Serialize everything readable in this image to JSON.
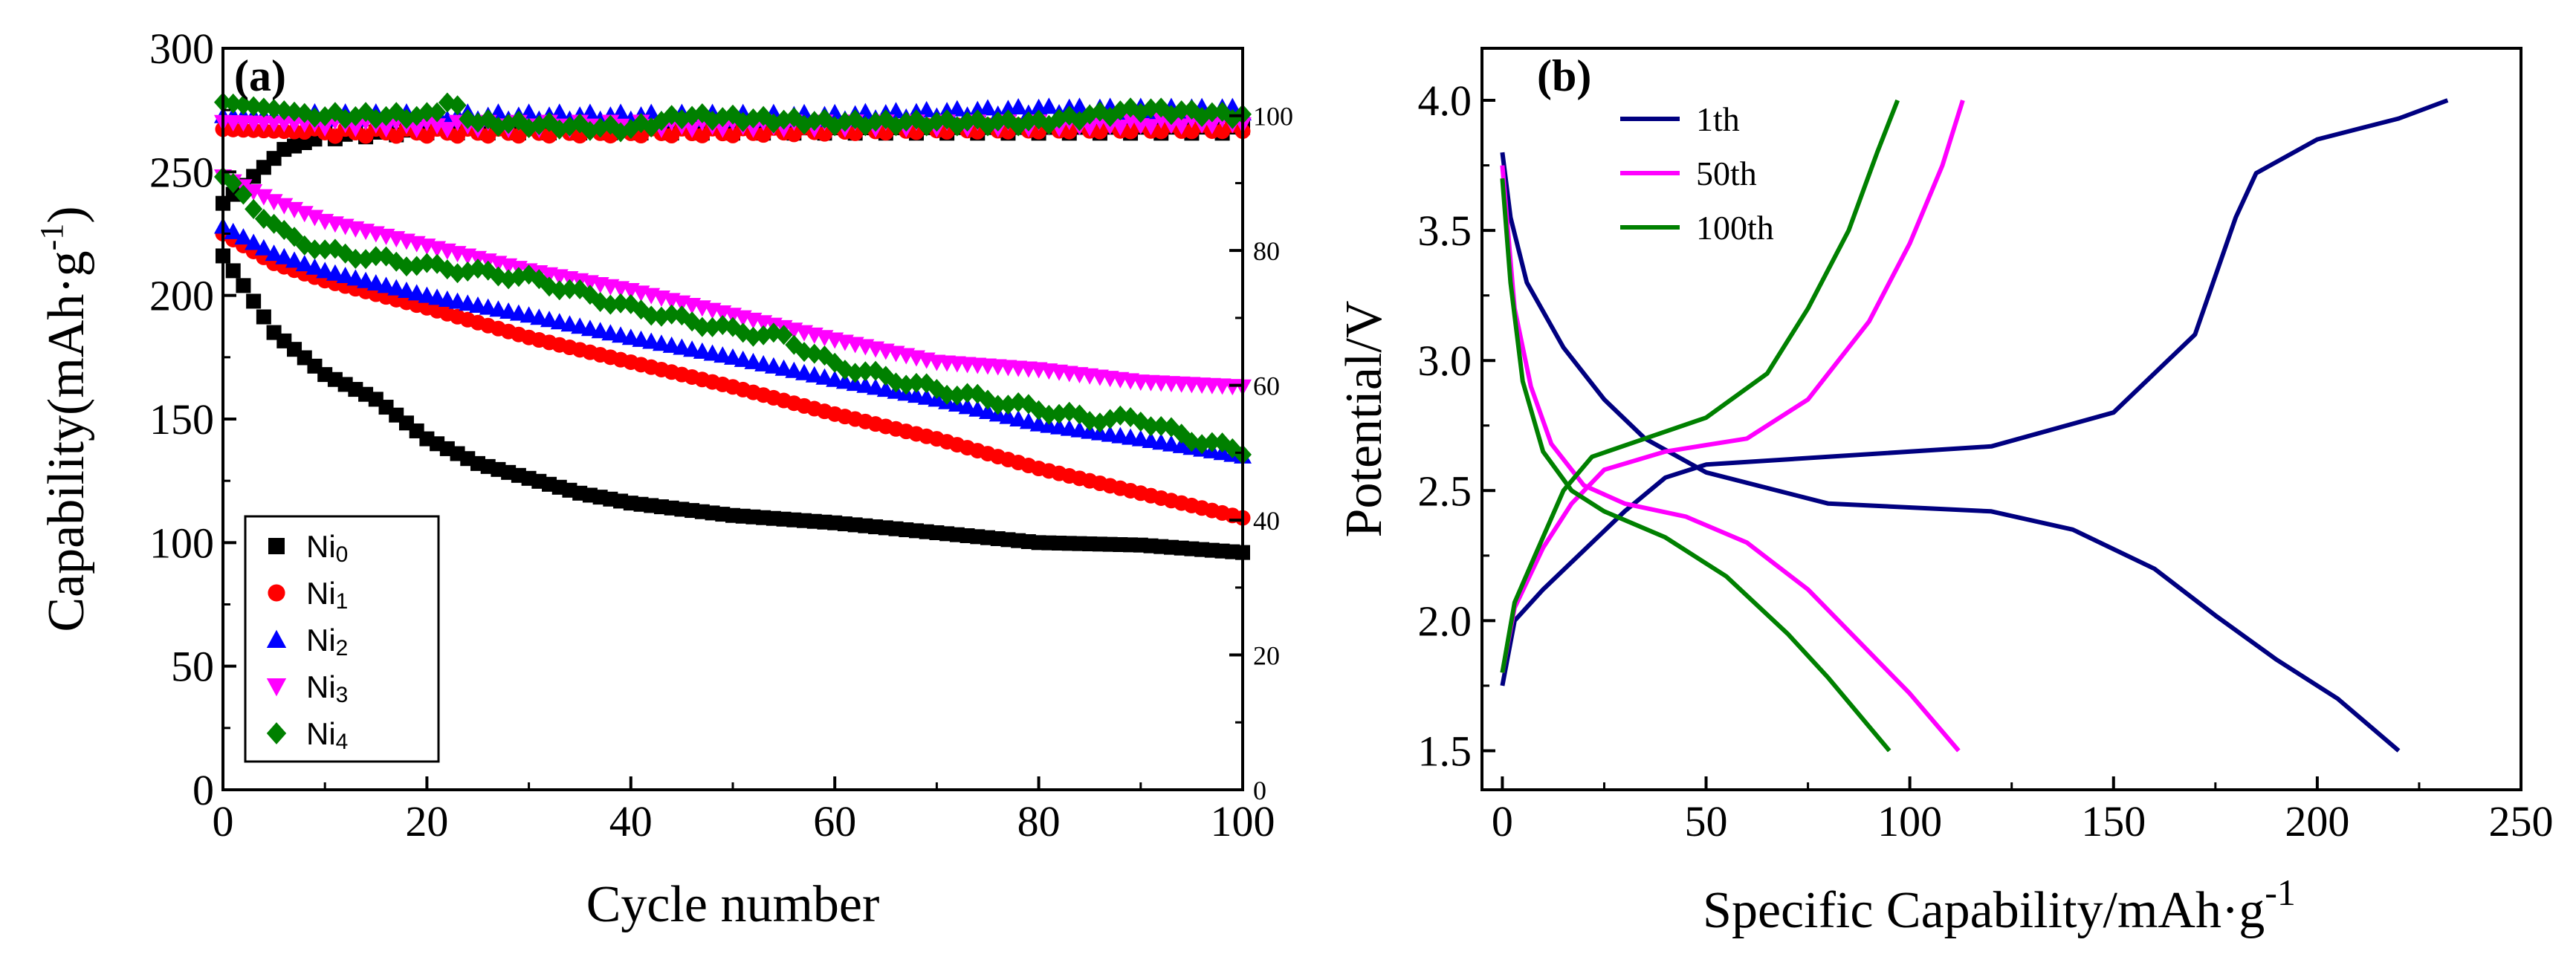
{
  "chart_data": [
    {
      "panel": "(a)",
      "type": "scatter",
      "xlabel": "Cycle number",
      "ylabel": "Capability(mAh·g",
      "ylabel_sup": "-1",
      "ylabel_end": ")",
      "xlim": [
        0,
        100
      ],
      "ylim": [
        0,
        300
      ],
      "y2lim": [
        0,
        110
      ],
      "xticks": [
        "0",
        "20",
        "40",
        "60",
        "80",
        "100"
      ],
      "yticks": [
        "0",
        "50",
        "100",
        "150",
        "200",
        "250",
        "300"
      ],
      "y2ticks": [
        "0",
        "20",
        "40",
        "60",
        "80",
        "100"
      ],
      "legend_position": "bottom-left",
      "series": [
        {
          "name": "Ni",
          "sub": "0",
          "color": "#000000",
          "marker": "square",
          "capacity": [
            [
              0,
              216
            ],
            [
              2,
              204
            ],
            [
              5,
              185
            ],
            [
              10,
              168
            ],
            [
              15,
              158
            ],
            [
              20,
              142
            ],
            [
              25,
              132
            ],
            [
              30,
              126
            ],
            [
              35,
              120
            ],
            [
              40,
              116
            ],
            [
              50,
              111
            ],
            [
              60,
              108
            ],
            [
              70,
              104
            ],
            [
              80,
              100
            ],
            [
              90,
              99
            ],
            [
              100,
              96
            ]
          ],
          "efficiency": [
            [
              0,
              87
            ],
            [
              3,
              91
            ],
            [
              6,
              95
            ],
            [
              10,
              97
            ],
            [
              20,
              98
            ],
            [
              40,
              98
            ],
            [
              60,
              98
            ],
            [
              80,
              98
            ],
            [
              100,
              98
            ]
          ]
        },
        {
          "name": "Ni",
          "sub": "1",
          "color": "#ff0000",
          "marker": "circle",
          "capacity": [
            [
              0,
              225
            ],
            [
              5,
              213
            ],
            [
              10,
              206
            ],
            [
              20,
              195
            ],
            [
              30,
              183
            ],
            [
              40,
              173
            ],
            [
              50,
              163
            ],
            [
              60,
              152
            ],
            [
              70,
              142
            ],
            [
              80,
              130
            ],
            [
              90,
              120
            ],
            [
              100,
              110
            ]
          ],
          "efficiency": [
            [
              0,
              98
            ],
            [
              10,
              97.5
            ],
            [
              30,
              97.5
            ],
            [
              50,
              97.5
            ],
            [
              70,
              98
            ],
            [
              100,
              98
            ]
          ]
        },
        {
          "name": "Ni",
          "sub": "2",
          "color": "#0000ff",
          "marker": "triangle-up",
          "capacity": [
            [
              0,
              228
            ],
            [
              5,
              217
            ],
            [
              10,
              210
            ],
            [
              20,
              200
            ],
            [
              30,
              192
            ],
            [
              40,
              183
            ],
            [
              50,
              175
            ],
            [
              60,
              166
            ],
            [
              70,
              158
            ],
            [
              80,
              148
            ],
            [
              90,
              142
            ],
            [
              100,
              135
            ]
          ],
          "efficiency": [
            [
              0,
              100
            ],
            [
              20,
              100
            ],
            [
              40,
              100
            ],
            [
              60,
              100
            ],
            [
              80,
              101
            ],
            [
              100,
              101
            ]
          ]
        },
        {
          "name": "Ni",
          "sub": "3",
          "color": "#ff00ff",
          "marker": "triangle-down",
          "capacity": [
            [
              0,
              248
            ],
            [
              5,
              238
            ],
            [
              10,
              230
            ],
            [
              20,
              220
            ],
            [
              30,
              210
            ],
            [
              40,
              202
            ],
            [
              50,
              192
            ],
            [
              60,
              182
            ],
            [
              70,
              173
            ],
            [
              80,
              170
            ],
            [
              90,
              165
            ],
            [
              100,
              163
            ]
          ],
          "efficiency": [
            [
              0,
              99
            ],
            [
              20,
              98.5
            ],
            [
              40,
              98.5
            ],
            [
              60,
              98.5
            ],
            [
              80,
              98.5
            ],
            [
              100,
              99
            ]
          ]
        },
        {
          "name": "Ni",
          "sub": "4",
          "color": "#008000",
          "marker": "diamond",
          "capacity": [
            [
              0,
              248
            ],
            [
              3,
              236
            ],
            [
              6,
              225
            ],
            [
              10,
              218
            ],
            [
              20,
              212
            ],
            [
              30,
              207
            ],
            [
              40,
              195
            ],
            [
              50,
              186
            ],
            [
              55,
              183
            ],
            [
              60,
              172
            ],
            [
              70,
              162
            ],
            [
              80,
              154
            ],
            [
              85,
              150
            ],
            [
              90,
              150
            ],
            [
              95,
              142
            ],
            [
              100,
              137
            ]
          ],
          "efficiency": [
            [
              0,
              102
            ],
            [
              5,
              101
            ],
            [
              10,
              100
            ],
            [
              20,
              100
            ],
            [
              22,
              102
            ],
            [
              25,
              99
            ],
            [
              40,
              98
            ],
            [
              45,
              100
            ],
            [
              60,
              99
            ],
            [
              80,
              99
            ],
            [
              90,
              101
            ],
            [
              100,
              100
            ]
          ]
        }
      ]
    },
    {
      "panel": "(b)",
      "type": "line",
      "xlabel": "Specific Capability/mAh·g",
      "xlabel_sup": "-1",
      "ylabel": "Potential/V",
      "xlim": [
        -5,
        250
      ],
      "ylim": [
        1.35,
        4.2
      ],
      "xticks": [
        "0",
        "50",
        "100",
        "150",
        "200",
        "250"
      ],
      "yticks": [
        "1.5",
        "2.0",
        "2.5",
        "3.0",
        "3.5",
        "4.0"
      ],
      "legend_position": "top-left",
      "series": [
        {
          "name": "1th",
          "color": "#000080",
          "charge": [
            [
              0,
              1.75
            ],
            [
              3,
              2.0
            ],
            [
              10,
              2.12
            ],
            [
              20,
              2.27
            ],
            [
              30,
              2.42
            ],
            [
              40,
              2.55
            ],
            [
              50,
              2.6
            ],
            [
              80,
              2.63
            ],
            [
              120,
              2.67
            ],
            [
              150,
              2.8
            ],
            [
              170,
              3.1
            ],
            [
              180,
              3.55
            ],
            [
              185,
              3.72
            ],
            [
              200,
              3.85
            ],
            [
              220,
              3.93
            ],
            [
              232,
              4.0
            ]
          ],
          "discharge": [
            [
              0,
              3.8
            ],
            [
              2,
              3.55
            ],
            [
              6,
              3.3
            ],
            [
              15,
              3.05
            ],
            [
              25,
              2.85
            ],
            [
              35,
              2.7
            ],
            [
              50,
              2.57
            ],
            [
              80,
              2.45
            ],
            [
              120,
              2.42
            ],
            [
              140,
              2.35
            ],
            [
              160,
              2.2
            ],
            [
              175,
              2.02
            ],
            [
              190,
              1.85
            ],
            [
              205,
              1.7
            ],
            [
              220,
              1.5
            ]
          ]
        },
        {
          "name": "50th",
          "color": "#ff00ff",
          "charge": [
            [
              0,
              1.8
            ],
            [
              3,
              2.05
            ],
            [
              10,
              2.28
            ],
            [
              17,
              2.45
            ],
            [
              25,
              2.58
            ],
            [
              40,
              2.65
            ],
            [
              60,
              2.7
            ],
            [
              75,
              2.85
            ],
            [
              90,
              3.15
            ],
            [
              100,
              3.45
            ],
            [
              108,
              3.75
            ],
            [
              113,
              4.0
            ]
          ],
          "discharge": [
            [
              0,
              3.75
            ],
            [
              3,
              3.2
            ],
            [
              7,
              2.9
            ],
            [
              12,
              2.68
            ],
            [
              20,
              2.52
            ],
            [
              30,
              2.45
            ],
            [
              45,
              2.4
            ],
            [
              60,
              2.3
            ],
            [
              75,
              2.12
            ],
            [
              90,
              1.88
            ],
            [
              100,
              1.72
            ],
            [
              112,
              1.5
            ]
          ]
        },
        {
          "name": "100th",
          "color": "#008000",
          "charge": [
            [
              0,
              1.8
            ],
            [
              3,
              2.07
            ],
            [
              8,
              2.25
            ],
            [
              15,
              2.5
            ],
            [
              22,
              2.63
            ],
            [
              35,
              2.7
            ],
            [
              50,
              2.78
            ],
            [
              65,
              2.95
            ],
            [
              75,
              3.2
            ],
            [
              85,
              3.5
            ],
            [
              92,
              3.8
            ],
            [
              97,
              4.0
            ]
          ],
          "discharge": [
            [
              0,
              3.7
            ],
            [
              2,
              3.3
            ],
            [
              5,
              2.92
            ],
            [
              10,
              2.65
            ],
            [
              17,
              2.5
            ],
            [
              25,
              2.42
            ],
            [
              40,
              2.32
            ],
            [
              55,
              2.17
            ],
            [
              70,
              1.95
            ],
            [
              80,
              1.78
            ],
            [
              95,
              1.5
            ]
          ]
        }
      ]
    }
  ]
}
